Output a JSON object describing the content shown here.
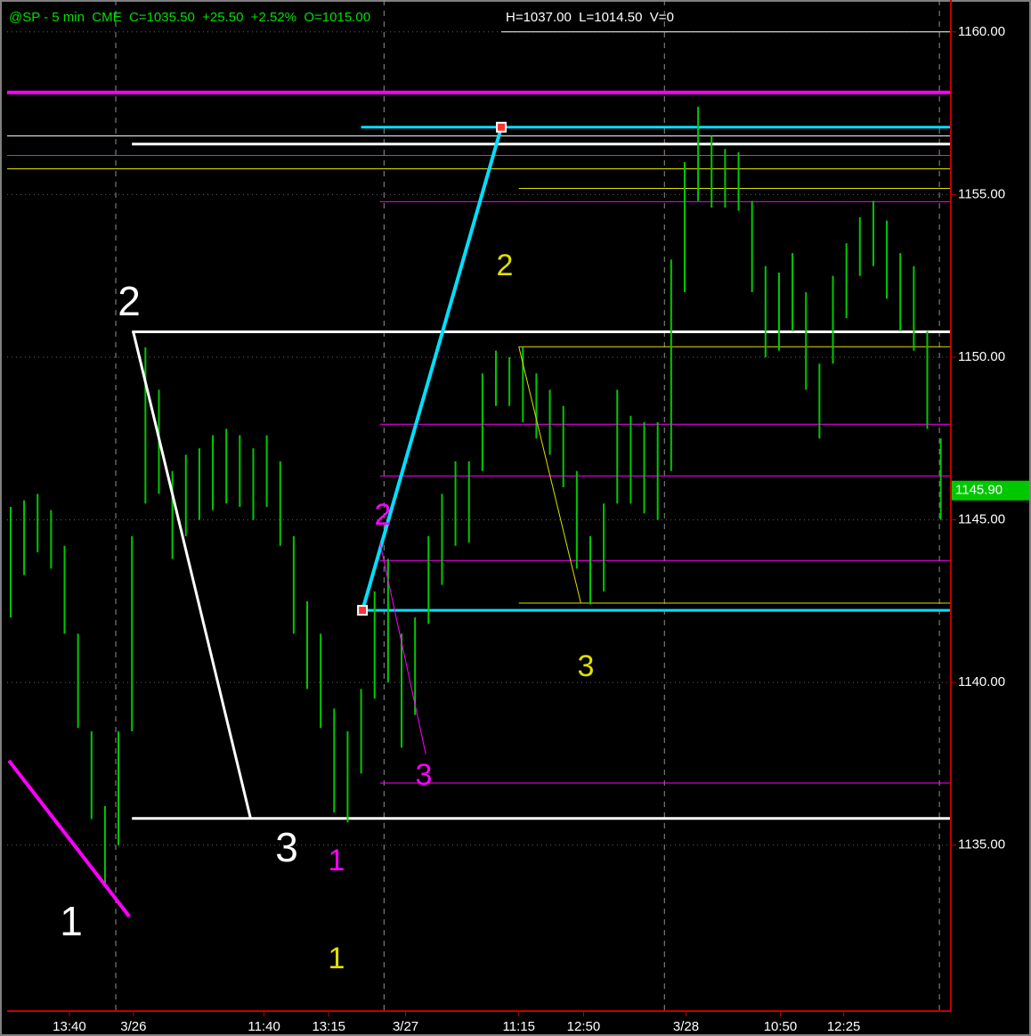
{
  "chart_data": {
    "type": "ohlc",
    "header": "@SP - 5 min  CME  C=1035.50  +25.50  +2.52%  O=1015.00",
    "header_extra": "H=1037.00  L=1014.50  V=0",
    "color": "#00c800",
    "x": [
      0,
      1,
      2,
      3,
      4,
      5,
      6,
      7,
      8,
      9,
      10,
      11,
      12,
      13,
      14,
      15,
      16,
      17,
      18,
      19,
      20,
      21,
      22,
      23,
      24,
      25,
      26,
      27,
      28,
      29,
      30,
      31,
      32,
      33,
      34,
      35,
      36,
      37,
      38,
      39,
      40,
      41,
      42,
      43,
      44,
      45,
      46,
      47,
      48,
      49,
      50,
      51,
      52,
      53,
      54,
      55,
      56,
      57,
      58,
      59,
      60,
      61,
      62,
      63,
      64,
      65,
      66,
      67,
      68,
      69
    ],
    "high": [
      1145.4,
      1145.6,
      1145.8,
      1145.3,
      1144.2,
      1141.5,
      1138.5,
      1136.2,
      1138.5,
      1144.5,
      1150.3,
      1149.0,
      1146.5,
      1147.0,
      1147.2,
      1147.6,
      1147.8,
      1147.6,
      1147.2,
      1147.6,
      1146.8,
      1144.5,
      1142.5,
      1141.5,
      1139.2,
      1138.5,
      1139.8,
      1142.8,
      1143.8,
      1141.5,
      1142.0,
      1144.5,
      1145.8,
      1146.8,
      1146.8,
      1149.5,
      1150.2,
      1150.0,
      1150.3,
      1149.5,
      1149.0,
      1148.5,
      1146.5,
      1144.5,
      1145.5,
      1149.0,
      1148.2,
      1148.0,
      1148.0,
      1153.0,
      1156.0,
      1157.7,
      1156.8,
      1156.4,
      1156.3,
      1154.8,
      1152.8,
      1152.6,
      1153.2,
      1152.0,
      1149.8,
      1152.5,
      1153.5,
      1154.3,
      1154.8,
      1154.2,
      1153.2,
      1152.8,
      1150.8,
      1147.5
    ],
    "low": [
      1142.0,
      1143.3,
      1144.0,
      1143.5,
      1141.5,
      1138.6,
      1135.8,
      1133.8,
      1135.0,
      1138.5,
      1145.5,
      1145.8,
      1143.8,
      1144.5,
      1145.0,
      1145.3,
      1145.5,
      1145.4,
      1145.0,
      1145.4,
      1144.2,
      1141.5,
      1139.8,
      1138.6,
      1136.0,
      1135.7,
      1137.2,
      1139.5,
      1140.0,
      1138.0,
      1139.0,
      1141.8,
      1143.0,
      1144.2,
      1144.3,
      1146.5,
      1148.5,
      1148.5,
      1148.0,
      1147.5,
      1147.0,
      1146.0,
      1143.5,
      1142.4,
      1142.8,
      1145.5,
      1145.5,
      1145.2,
      1145.0,
      1146.5,
      1152.0,
      1154.8,
      1154.6,
      1154.6,
      1154.5,
      1152.0,
      1150.0,
      1150.2,
      1150.8,
      1149.0,
      1147.5,
      1149.8,
      1151.2,
      1152.5,
      1152.8,
      1151.8,
      1150.8,
      1150.2,
      1147.8,
      1145.0
    ],
    "xlim": [
      -0.26,
      69.75
    ],
    "ylim": [
      1129.9,
      1160.98
    ],
    "yticks": [
      {
        "value": 1160,
        "label": "1160.00"
      },
      {
        "value": 1155,
        "label": "1155.00"
      },
      {
        "value": 1150,
        "label": "1150.00"
      },
      {
        "value": 1145,
        "label": "1145.00"
      },
      {
        "value": 1140,
        "label": "1140.00"
      },
      {
        "value": 1135,
        "label": "1135.00"
      }
    ],
    "xticks": [
      {
        "value": 4.36,
        "label": "13:40"
      },
      {
        "value": 9.11,
        "label": "3/26"
      },
      {
        "value": 18.8,
        "label": "11:40"
      },
      {
        "value": 23.6,
        "label": "13:15"
      },
      {
        "value": 29.3,
        "label": "3/27"
      },
      {
        "value": 37.7,
        "label": "11:15"
      },
      {
        "value": 42.5,
        "label": "12:50"
      },
      {
        "value": 50.1,
        "label": "3/28"
      },
      {
        "value": 57.1,
        "label": "10:50"
      },
      {
        "value": 61.8,
        "label": "12:25"
      }
    ],
    "day_breaks": [
      7.8,
      27.7,
      48.5,
      68.9
    ],
    "last_price": {
      "value": 1145.9,
      "label": "1145.90"
    },
    "grid": true,
    "levels": [
      {
        "price": 1160.0,
        "color": "#ffffff",
        "width": 1,
        "from": 36.4
      },
      {
        "price": 1158.14,
        "color": "#ff00ff",
        "width": 4,
        "from": -0.26
      },
      {
        "price": 1157.07,
        "color": "#00e0ff",
        "width": 3,
        "from": 26.0
      },
      {
        "price": 1156.8,
        "color": "#ffffff",
        "width": 1,
        "from": -0.26
      },
      {
        "price": 1156.55,
        "color": "#ffffff",
        "width": 3,
        "from": 9.0
      },
      {
        "price": 1156.2,
        "color": "#ff00ff",
        "width": 1,
        "from": -0.26
      },
      {
        "price": 1155.79,
        "color": "#e0e000",
        "width": 1,
        "from": -0.26
      },
      {
        "price": 1155.19,
        "color": "#e0e000",
        "width": 1,
        "from": 37.7
      },
      {
        "price": 1154.78,
        "color": "#ff00ff",
        "width": 1,
        "from": 27.4
      },
      {
        "price": 1150.78,
        "color": "#ffffff",
        "width": 3,
        "from": 9.0
      },
      {
        "price": 1150.32,
        "color": "#e0e000",
        "width": 1,
        "from": 37.7
      },
      {
        "price": 1147.94,
        "color": "#ff00ff",
        "width": 1,
        "from": 27.4
      },
      {
        "price": 1146.35,
        "color": "#ff00ff",
        "width": 1,
        "from": 27.4
      },
      {
        "price": 1143.75,
        "color": "#ff00ff",
        "width": 1,
        "from": 27.4
      },
      {
        "price": 1142.44,
        "color": "#e0e000",
        "width": 1,
        "from": 37.7
      },
      {
        "price": 1142.22,
        "color": "#00e0ff",
        "width": 3,
        "from": 26.0
      },
      {
        "price": 1136.91,
        "color": "#ff00ff",
        "width": 1,
        "from": 27.4
      },
      {
        "price": 1135.82,
        "color": "#ffffff",
        "width": 3,
        "from": 9.0
      }
    ],
    "segments": [
      {
        "x": [
          9.1,
          17.8
        ],
        "price": [
          1150.78,
          1135.82
        ],
        "color": "#ffffff",
        "width": 3
      },
      {
        "x": [
          26.1,
          36.4
        ],
        "price": [
          1142.22,
          1157.07
        ],
        "color": "#00e0ff",
        "width": 4,
        "handles": true
      },
      {
        "x": [
          -0.13,
          8.8
        ],
        "price": [
          1137.6,
          1132.81
        ],
        "color": "#ff00ff",
        "width": 4
      },
      {
        "x": [
          27.4,
          30.8
        ],
        "price": [
          1144.3,
          1137.79
        ],
        "color": "#ff00ff",
        "width": 1
      },
      {
        "x": [
          37.7,
          42.3
        ],
        "price": [
          1150.32,
          1142.44
        ],
        "color": "#e0e000",
        "width": 1
      }
    ],
    "annotations": [
      {
        "text": "2",
        "color": "#ffffff"
      },
      {
        "text": "3",
        "color": "#ffffff"
      },
      {
        "text": "1",
        "color": "#ffffff"
      },
      {
        "text": "1",
        "color": "#ff00ff"
      },
      {
        "text": "1",
        "color": "#e0e000"
      },
      {
        "text": "2",
        "color": "#e0e000"
      },
      {
        "text": "3",
        "color": "#e0e000"
      },
      {
        "text": "2",
        "color": "#ff00ff"
      },
      {
        "text": "3",
        "color": "#ff00ff"
      }
    ]
  }
}
